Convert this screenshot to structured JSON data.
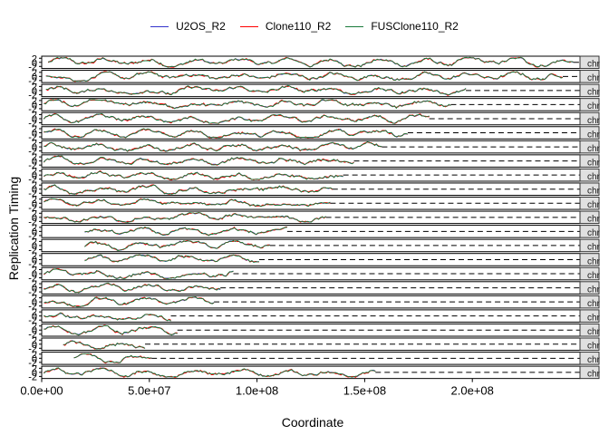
{
  "chart_data": {
    "type": "line",
    "xlabel": "Coordinate",
    "ylabel": "Replication Timing",
    "xlim": [
      0,
      250000000
    ],
    "x_ticks": [
      "0.0e+00",
      "5.0e+07",
      "1.0e+08",
      "1.5e+08",
      "2.0e+08"
    ],
    "x_tick_values": [
      0,
      50000000,
      100000000,
      150000000,
      200000000
    ],
    "y_tick_values": [
      -2,
      0,
      2
    ],
    "facet_label": "chr",
    "legend_position": "top",
    "series": [
      {
        "name": "U2OS_R2",
        "color": "#3333cc"
      },
      {
        "name": "Clone110_R2",
        "color": "#ff0000"
      },
      {
        "name": "FUSClone110_R2",
        "color": "#1a7a3a"
      }
    ],
    "panels": [
      {
        "start": 3000000,
        "end": 247000000
      },
      {
        "start": 2000000,
        "end": 242000000
      },
      {
        "start": 2000000,
        "end": 197000000
      },
      {
        "start": 1000000,
        "end": 190000000
      },
      {
        "start": 1000000,
        "end": 180000000
      },
      {
        "start": 1000000,
        "end": 170000000
      },
      {
        "start": 1000000,
        "end": 158000000
      },
      {
        "start": 1000000,
        "end": 145000000
      },
      {
        "start": 1000000,
        "end": 140000000
      },
      {
        "start": 1000000,
        "end": 135000000
      },
      {
        "start": 1000000,
        "end": 134000000
      },
      {
        "start": 1000000,
        "end": 132000000
      },
      {
        "start": 20000000,
        "end": 114000000
      },
      {
        "start": 20000000,
        "end": 106000000
      },
      {
        "start": 20000000,
        "end": 101000000
      },
      {
        "start": 1000000,
        "end": 89000000
      },
      {
        "start": 1000000,
        "end": 83000000
      },
      {
        "start": 1000000,
        "end": 80000000
      },
      {
        "start": 1000000,
        "end": 60000000
      },
      {
        "start": 1000000,
        "end": 63000000
      },
      {
        "start": 10000000,
        "end": 48000000
      },
      {
        "start": 15000000,
        "end": 51000000
      },
      {
        "start": 1000000,
        "end": 155000000
      }
    ]
  }
}
